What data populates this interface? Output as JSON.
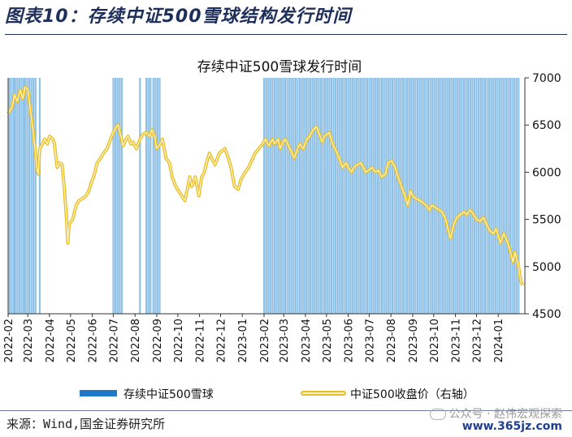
{
  "heading": "图表10：存续中证500雪球结构发行时间",
  "source": "来源：Wind,国金证券研究所",
  "watermark": {
    "text": "公众号 · 赵伟宏观探索",
    "url": "www.365jz.com",
    "icon": "wechat-icon"
  },
  "chart_data": {
    "type": "line",
    "title": "存续中证500雪球发行时间",
    "xlabel": "",
    "ylabel": "",
    "x_ticks": [
      "2022-02",
      "2022-03",
      "2022-04",
      "2022-05",
      "2022-06",
      "2022-07",
      "2022-08",
      "2022-09",
      "2022-10",
      "2022-11",
      "2022-12",
      "2023-01",
      "2023-02",
      "2023-03",
      "2023-04",
      "2023-05",
      "2023-06",
      "2023-07",
      "2023-08",
      "2023-09",
      "2023-10",
      "2023-11",
      "2023-12",
      "2024-01"
    ],
    "xlim": [
      "2022-02-01",
      "2024-02-08"
    ],
    "y_right": {
      "range": [
        4500,
        7000
      ],
      "ticks": [
        4500,
        5000,
        5500,
        6000,
        6500,
        7000
      ]
    },
    "grid": false,
    "legend_position": "bottom",
    "colors": {
      "bars": "#8fc1e6",
      "legend_bar": "#1f78c8",
      "line_outer": "#e8bf2a",
      "line_inner": "#fff4c2"
    },
    "series": [
      {
        "name": "存续中证500雪球",
        "kind": "issuance-dates",
        "dates": [
          "2022-02-03",
          "2022-02-06",
          "2022-02-09",
          "2022-02-11",
          "2022-02-14",
          "2022-02-17",
          "2022-02-20",
          "2022-02-23",
          "2022-02-25",
          "2022-02-28",
          "2022-03-03",
          "2022-03-06",
          "2022-03-09",
          "2022-03-12",
          "2022-03-18",
          "2022-07-01",
          "2022-07-04",
          "2022-07-07",
          "2022-07-10",
          "2022-07-13",
          "2022-08-08",
          "2022-08-17",
          "2022-08-20",
          "2022-08-23",
          "2022-08-27",
          "2022-08-30",
          "2022-09-02",
          "2022-09-05",
          "2023-02-01",
          "2023-02-04",
          "2023-02-07",
          "2023-02-10",
          "2023-02-13",
          "2023-02-16",
          "2023-02-19",
          "2023-02-22",
          "2023-02-25",
          "2023-02-28",
          "2023-03-03",
          "2023-03-06",
          "2023-03-09",
          "2023-03-12",
          "2023-03-15",
          "2023-03-18",
          "2023-03-21",
          "2023-03-24",
          "2023-03-27",
          "2023-03-30",
          "2023-04-02",
          "2023-04-05",
          "2023-04-08",
          "2023-04-11",
          "2023-04-14",
          "2023-04-17",
          "2023-04-20",
          "2023-04-23",
          "2023-04-26",
          "2023-04-29",
          "2023-05-02",
          "2023-05-05",
          "2023-05-08",
          "2023-05-11",
          "2023-05-14",
          "2023-05-17",
          "2023-05-20",
          "2023-05-23",
          "2023-05-26",
          "2023-05-29",
          "2023-06-01",
          "2023-06-04",
          "2023-06-07",
          "2023-06-10",
          "2023-06-13",
          "2023-06-16",
          "2023-06-19",
          "2023-06-22",
          "2023-06-25",
          "2023-06-28",
          "2023-07-01",
          "2023-07-04",
          "2023-07-07",
          "2023-07-10",
          "2023-07-13",
          "2023-07-16",
          "2023-07-19",
          "2023-07-22",
          "2023-07-25",
          "2023-07-28",
          "2023-07-31",
          "2023-08-03",
          "2023-08-06",
          "2023-08-09",
          "2023-08-12",
          "2023-08-15",
          "2023-08-18",
          "2023-08-21",
          "2023-08-24",
          "2023-08-27",
          "2023-08-30",
          "2023-09-02",
          "2023-09-05",
          "2023-09-08",
          "2023-09-11",
          "2023-09-14",
          "2023-09-17",
          "2023-09-20",
          "2023-09-23",
          "2023-09-26",
          "2023-09-29",
          "2023-10-02",
          "2023-10-05",
          "2023-10-08",
          "2023-10-11",
          "2023-10-14",
          "2023-10-17",
          "2023-10-20",
          "2023-10-23",
          "2023-10-26",
          "2023-10-29",
          "2023-11-01",
          "2023-11-04",
          "2023-11-07",
          "2023-11-10",
          "2023-11-13",
          "2023-11-16",
          "2023-11-19",
          "2023-11-22",
          "2023-11-25",
          "2023-11-28",
          "2023-12-01",
          "2023-12-04",
          "2023-12-07",
          "2023-12-10",
          "2023-12-13",
          "2023-12-16",
          "2023-12-19",
          "2023-12-22",
          "2023-12-25",
          "2023-12-28",
          "2023-12-31",
          "2024-01-03",
          "2024-01-06",
          "2024-01-09",
          "2024-01-12",
          "2024-01-15",
          "2024-01-18",
          "2024-01-21",
          "2024-01-24",
          "2024-01-27",
          "2024-01-30"
        ]
      },
      {
        "name": "中证500收盘价（右轴）",
        "axis": "right",
        "points": [
          [
            "2022-02-01",
            6620
          ],
          [
            "2022-02-07",
            6700
          ],
          [
            "2022-02-10",
            6820
          ],
          [
            "2022-02-14",
            6750
          ],
          [
            "2022-02-18",
            6870
          ],
          [
            "2022-02-22",
            6780
          ],
          [
            "2022-02-25",
            6900
          ],
          [
            "2022-03-01",
            6880
          ],
          [
            "2022-03-04",
            6700
          ],
          [
            "2022-03-08",
            6480
          ],
          [
            "2022-03-10",
            6350
          ],
          [
            "2022-03-14",
            6050
          ],
          [
            "2022-03-16",
            5980
          ],
          [
            "2022-03-18",
            6250
          ],
          [
            "2022-03-22",
            6300
          ],
          [
            "2022-03-25",
            6350
          ],
          [
            "2022-03-29",
            6300
          ],
          [
            "2022-04-01",
            6380
          ],
          [
            "2022-04-06",
            6350
          ],
          [
            "2022-04-08",
            6300
          ],
          [
            "2022-04-12",
            6050
          ],
          [
            "2022-04-15",
            6100
          ],
          [
            "2022-04-19",
            6080
          ],
          [
            "2022-04-22",
            5850
          ],
          [
            "2022-04-25",
            5550
          ],
          [
            "2022-04-27",
            5250
          ],
          [
            "2022-04-29",
            5450
          ],
          [
            "2022-05-04",
            5500
          ],
          [
            "2022-05-09",
            5650
          ],
          [
            "2022-05-13",
            5700
          ],
          [
            "2022-05-18",
            5720
          ],
          [
            "2022-05-23",
            5750
          ],
          [
            "2022-05-27",
            5800
          ],
          [
            "2022-05-31",
            5900
          ],
          [
            "2022-06-03",
            5950
          ],
          [
            "2022-06-08",
            6100
          ],
          [
            "2022-06-13",
            6150
          ],
          [
            "2022-06-17",
            6200
          ],
          [
            "2022-06-22",
            6250
          ],
          [
            "2022-06-27",
            6350
          ],
          [
            "2022-07-01",
            6420
          ],
          [
            "2022-07-05",
            6480
          ],
          [
            "2022-07-08",
            6500
          ],
          [
            "2022-07-12",
            6380
          ],
          [
            "2022-07-15",
            6280
          ],
          [
            "2022-07-19",
            6350
          ],
          [
            "2022-07-22",
            6380
          ],
          [
            "2022-07-26",
            6300
          ],
          [
            "2022-07-29",
            6320
          ],
          [
            "2022-08-03",
            6250
          ],
          [
            "2022-08-08",
            6350
          ],
          [
            "2022-08-12",
            6400
          ],
          [
            "2022-08-17",
            6420
          ],
          [
            "2022-08-22",
            6380
          ],
          [
            "2022-08-25",
            6450
          ],
          [
            "2022-08-29",
            6380
          ],
          [
            "2022-09-01",
            6250
          ],
          [
            "2022-09-06",
            6300
          ],
          [
            "2022-09-09",
            6350
          ],
          [
            "2022-09-14",
            6150
          ],
          [
            "2022-09-19",
            6100
          ],
          [
            "2022-09-23",
            5950
          ],
          [
            "2022-09-28",
            5850
          ],
          [
            "2022-10-11",
            5700
          ],
          [
            "2022-10-14",
            5800
          ],
          [
            "2022-10-18",
            5950
          ],
          [
            "2022-10-21",
            5850
          ],
          [
            "2022-10-26",
            5950
          ],
          [
            "2022-10-31",
            5750
          ],
          [
            "2022-11-04",
            5950
          ],
          [
            "2022-11-08",
            6000
          ],
          [
            "2022-11-11",
            6100
          ],
          [
            "2022-11-15",
            6200
          ],
          [
            "2022-11-18",
            6150
          ],
          [
            "2022-11-23",
            6080
          ],
          [
            "2022-11-29",
            6200
          ],
          [
            "2022-12-02",
            6220
          ],
          [
            "2022-12-07",
            6250
          ],
          [
            "2022-12-12",
            6150
          ],
          [
            "2022-12-16",
            6050
          ],
          [
            "2022-12-21",
            5850
          ],
          [
            "2022-12-26",
            5820
          ],
          [
            "2022-12-30",
            5920
          ],
          [
            "2023-01-05",
            6000
          ],
          [
            "2023-01-10",
            6050
          ],
          [
            "2023-01-16",
            6150
          ],
          [
            "2023-01-19",
            6200
          ],
          [
            "2023-01-30",
            6300
          ],
          [
            "2023-02-03",
            6350
          ],
          [
            "2023-02-08",
            6280
          ],
          [
            "2023-02-13",
            6350
          ],
          [
            "2023-02-16",
            6300
          ],
          [
            "2023-02-21",
            6350
          ],
          [
            "2023-02-24",
            6250
          ],
          [
            "2023-02-28",
            6320
          ],
          [
            "2023-03-03",
            6350
          ],
          [
            "2023-03-08",
            6280
          ],
          [
            "2023-03-13",
            6200
          ],
          [
            "2023-03-16",
            6150
          ],
          [
            "2023-03-21",
            6250
          ],
          [
            "2023-03-24",
            6300
          ],
          [
            "2023-03-29",
            6250
          ],
          [
            "2023-04-03",
            6350
          ],
          [
            "2023-04-07",
            6380
          ],
          [
            "2023-04-12",
            6450
          ],
          [
            "2023-04-17",
            6480
          ],
          [
            "2023-04-20",
            6420
          ],
          [
            "2023-04-25",
            6320
          ],
          [
            "2023-04-28",
            6380
          ],
          [
            "2023-05-05",
            6420
          ],
          [
            "2023-05-10",
            6300
          ],
          [
            "2023-05-15",
            6220
          ],
          [
            "2023-05-19",
            6150
          ],
          [
            "2023-05-24",
            6050
          ],
          [
            "2023-05-29",
            6100
          ],
          [
            "2023-06-01",
            6050
          ],
          [
            "2023-06-06",
            6000
          ],
          [
            "2023-06-09",
            6050
          ],
          [
            "2023-06-14",
            6080
          ],
          [
            "2023-06-19",
            6100
          ],
          [
            "2023-06-26",
            6000
          ],
          [
            "2023-06-30",
            6020
          ],
          [
            "2023-07-05",
            6050
          ],
          [
            "2023-07-10",
            6000
          ],
          [
            "2023-07-14",
            6020
          ],
          [
            "2023-07-19",
            5950
          ],
          [
            "2023-07-24",
            5980
          ],
          [
            "2023-07-28",
            6100
          ],
          [
            "2023-08-02",
            6120
          ],
          [
            "2023-08-07",
            6050
          ],
          [
            "2023-08-11",
            5950
          ],
          [
            "2023-08-16",
            5850
          ],
          [
            "2023-08-21",
            5750
          ],
          [
            "2023-08-25",
            5650
          ],
          [
            "2023-08-29",
            5800
          ],
          [
            "2023-09-01",
            5750
          ],
          [
            "2023-09-06",
            5720
          ],
          [
            "2023-09-11",
            5700
          ],
          [
            "2023-09-15",
            5680
          ],
          [
            "2023-09-20",
            5650
          ],
          [
            "2023-09-25",
            5600
          ],
          [
            "2023-09-28",
            5650
          ],
          [
            "2023-10-09",
            5600
          ],
          [
            "2023-10-13",
            5580
          ],
          [
            "2023-10-18",
            5500
          ],
          [
            "2023-10-23",
            5350
          ],
          [
            "2023-10-25",
            5300
          ],
          [
            "2023-10-30",
            5450
          ],
          [
            "2023-11-03",
            5520
          ],
          [
            "2023-11-08",
            5550
          ],
          [
            "2023-11-13",
            5580
          ],
          [
            "2023-11-17",
            5550
          ],
          [
            "2023-11-22",
            5600
          ],
          [
            "2023-11-27",
            5550
          ],
          [
            "2023-12-01",
            5500
          ],
          [
            "2023-12-06",
            5480
          ],
          [
            "2023-12-11",
            5520
          ],
          [
            "2023-12-15",
            5450
          ],
          [
            "2023-12-20",
            5380
          ],
          [
            "2023-12-25",
            5350
          ],
          [
            "2023-12-29",
            5400
          ],
          [
            "2024-01-04",
            5250
          ],
          [
            "2024-01-09",
            5350
          ],
          [
            "2024-01-12",
            5300
          ],
          [
            "2024-01-17",
            5200
          ],
          [
            "2024-01-22",
            5050
          ],
          [
            "2024-01-25",
            5150
          ],
          [
            "2024-01-30",
            5000
          ],
          [
            "2024-02-02",
            4850
          ],
          [
            "2024-02-05",
            4800
          ]
        ]
      }
    ]
  }
}
